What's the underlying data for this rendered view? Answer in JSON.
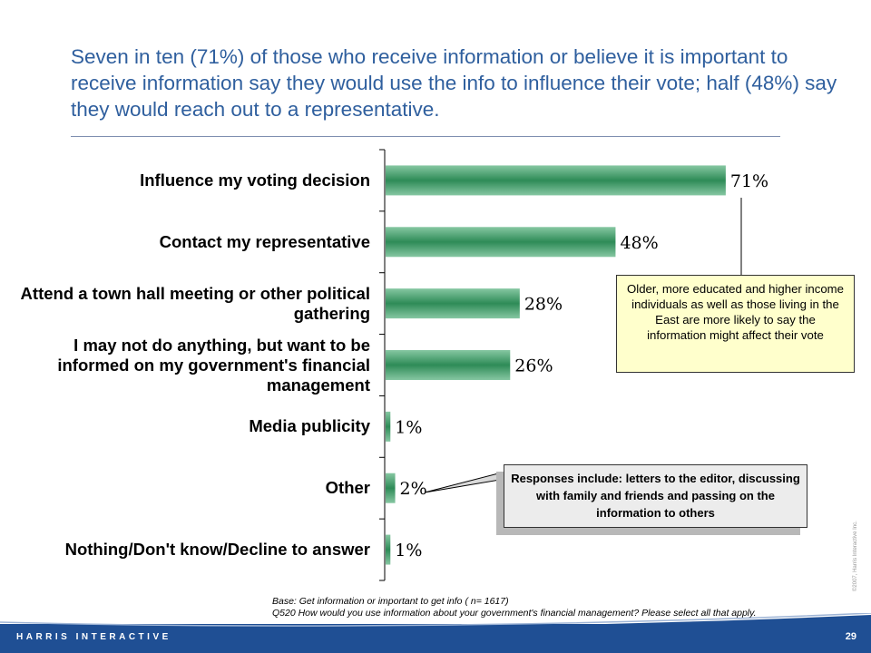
{
  "slide": {
    "title": "Seven in ten (71%) of those who receive information or believe it is important to receive information say they would use the info to influence their vote; half (48%) say they would reach out to a representative.",
    "callout_yellow": "Older, more educated and higher income individuals as well as those living in the East are more likely to say the information might affect their vote",
    "callout_grey": "Responses include: letters to the editor, discussing with family and friends and passing on the information to others",
    "copyright": "©2007, Harris Interactive Inc.",
    "footnote_base": "Base: Get information or important to get info ( n= 1617)",
    "footnote_question": "Q520 How would you use information about your government's financial management? Please select all that apply.",
    "brand": "HARRIS INTERACTIVE",
    "page_number": "29"
  },
  "colors": {
    "bar_light": "#86c7a2",
    "bar_dark": "#2e8b57",
    "title": "#2f5f9e",
    "footer": "#1f4f94"
  },
  "chart_data": {
    "type": "bar",
    "orientation": "horizontal",
    "categories": [
      "Influence my voting decision",
      "Contact my representative",
      "Attend a town hall meeting or other political gathering",
      "I may not do anything, but want to be informed on my government's financial management",
      "Media publicity",
      "Other",
      "Nothing/Don't know/Decline to answer"
    ],
    "values": [
      71,
      48,
      28,
      26,
      1,
      2,
      1
    ],
    "value_labels": [
      "71%",
      "48%",
      "28%",
      "26%",
      "1%",
      "2%",
      "1%"
    ],
    "xlim": [
      0,
      100
    ],
    "grid": false,
    "legend": "none"
  }
}
